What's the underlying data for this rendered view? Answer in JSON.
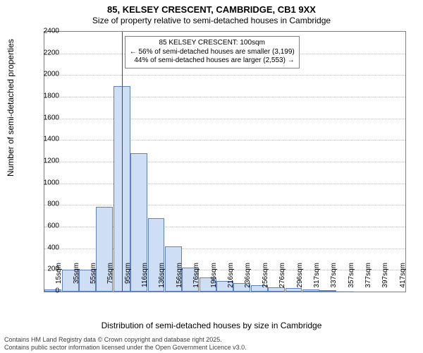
{
  "title": "85, KELSEY CRESCENT, CAMBRIDGE, CB1 9XX",
  "subtitle": "Size of property relative to semi-detached houses in Cambridge",
  "ylabel": "Number of semi-detached properties",
  "xlabel": "Distribution of semi-detached houses by size in Cambridge",
  "footer_line1": "Contains HM Land Registry data © Crown copyright and database right 2025.",
  "footer_line2": "Contains public sector information licensed under the Open Government Licence v3.0.",
  "chart": {
    "type": "histogram",
    "ylim": [
      0,
      2400
    ],
    "ytick_step": 200,
    "bar_fill": "#cedef4",
    "bar_stroke": "#6080c0",
    "grid_color": "#c0c0c0",
    "border_color": "#808080",
    "marker_color": "#ff0000",
    "background_color": "#ffffff",
    "categories": [
      "15sqm",
      "35sqm",
      "55sqm",
      "75sqm",
      "95sqm",
      "116sqm",
      "136sqm",
      "156sqm",
      "176sqm",
      "196sqm",
      "216sqm",
      "236sqm",
      "256sqm",
      "276sqm",
      "296sqm",
      "317sqm",
      "337sqm",
      "357sqm",
      "377sqm",
      "397sqm",
      "417sqm"
    ],
    "values": [
      20,
      200,
      200,
      780,
      1900,
      1280,
      680,
      420,
      220,
      130,
      100,
      80,
      60,
      40,
      30,
      20,
      10,
      5,
      0,
      0,
      0
    ],
    "marker_index": 4,
    "annotation": {
      "line1": "85 KELSEY CRESCENT: 100sqm",
      "line2": "← 56% of semi-detached houses are smaller (3,199)",
      "line3": "44% of semi-detached houses are larger (2,553) →"
    },
    "title_fontsize": 13,
    "label_fontsize": 12,
    "tick_fontsize": 10
  }
}
